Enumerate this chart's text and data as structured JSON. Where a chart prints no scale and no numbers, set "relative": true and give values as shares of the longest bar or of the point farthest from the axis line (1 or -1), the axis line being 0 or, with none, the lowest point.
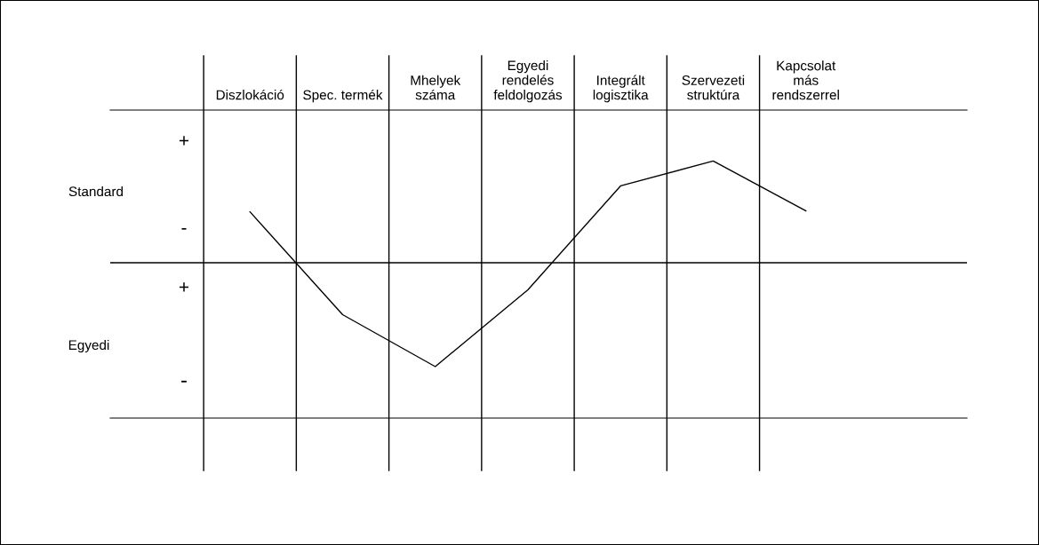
{
  "chart_data": {
    "type": "line",
    "relative": true,
    "categories": [
      "Diszlokáció",
      "Spec. termék",
      "Mhelyek\nszáma",
      "Egyedi\nrendelés\nfeldolgozás",
      "Integrált\nlogisztika",
      "Szervezeti\nstruktúra",
      "Kapcsolat\nmás\nrendszerrel"
    ],
    "series": [
      {
        "color": "#000000",
        "values": [
          0.49,
          -0.5,
          -1,
          -0.26,
          0.74,
          0.98,
          0.5
        ]
      }
    ],
    "annotations": [
      "+",
      "-",
      "Standard",
      "+",
      "-",
      "Egyedi"
    ],
    "marker": "none",
    "line_style": "solid",
    "grid": "x",
    "legend": false
  }
}
